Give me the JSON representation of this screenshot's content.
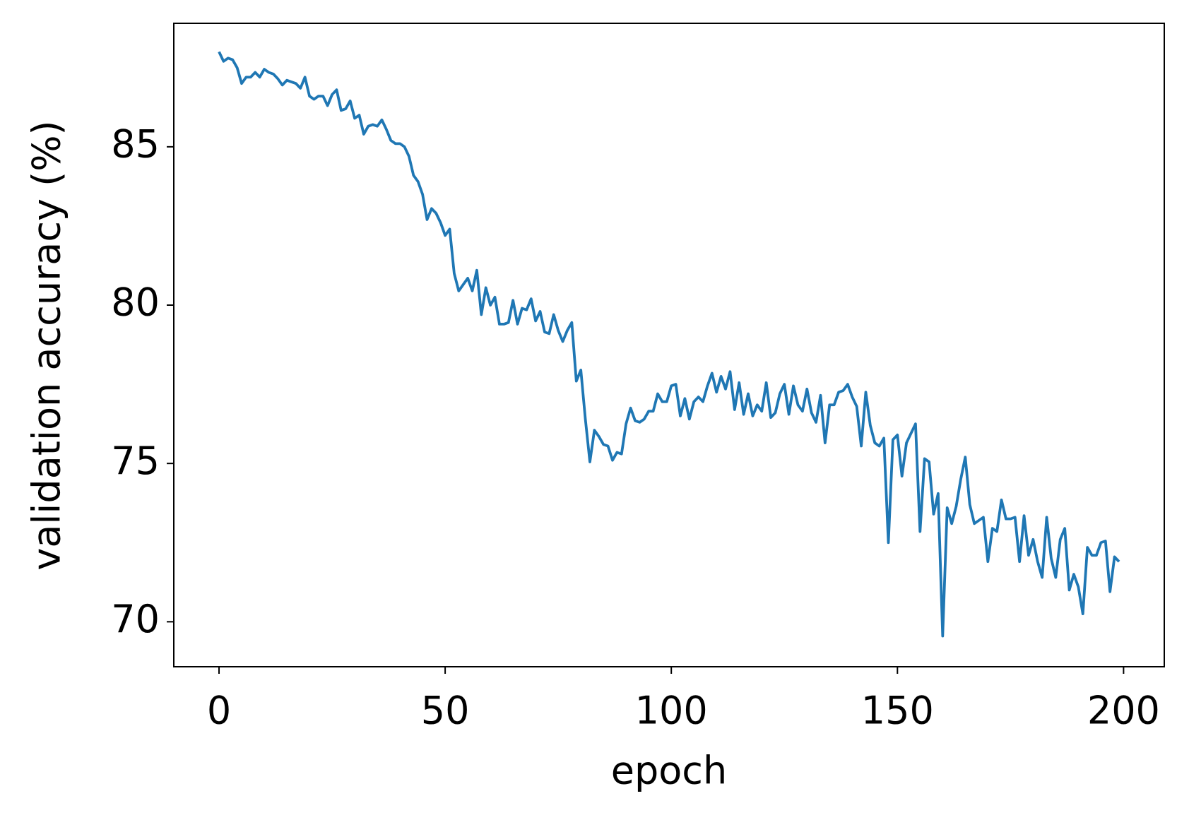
{
  "chart_data": {
    "type": "line",
    "xlabel": "epoch",
    "ylabel": "validation accuracy (%)",
    "xlim": [
      -10,
      209
    ],
    "ylim": [
      68.58,
      88.9
    ],
    "xticks": [
      0,
      50,
      100,
      150,
      200
    ],
    "yticks": [
      70,
      75,
      80,
      85
    ],
    "grid": false,
    "x": [
      0,
      1,
      2,
      3,
      4,
      5,
      6,
      7,
      8,
      9,
      10,
      11,
      12,
      13,
      14,
      15,
      16,
      17,
      18,
      19,
      20,
      21,
      22,
      23,
      24,
      25,
      26,
      27,
      28,
      29,
      30,
      31,
      32,
      33,
      34,
      35,
      36,
      37,
      38,
      39,
      40,
      41,
      42,
      43,
      44,
      45,
      46,
      47,
      48,
      49,
      50,
      51,
      52,
      53,
      54,
      55,
      56,
      57,
      58,
      59,
      60,
      61,
      62,
      63,
      64,
      65,
      66,
      67,
      68,
      69,
      70,
      71,
      72,
      73,
      74,
      75,
      76,
      77,
      78,
      79,
      80,
      81,
      82,
      83,
      84,
      85,
      86,
      87,
      88,
      89,
      90,
      91,
      92,
      93,
      94,
      95,
      96,
      97,
      98,
      99,
      100,
      101,
      102,
      103,
      104,
      105,
      106,
      107,
      108,
      109,
      110,
      111,
      112,
      113,
      114,
      115,
      116,
      117,
      118,
      119,
      120,
      121,
      122,
      123,
      124,
      125,
      126,
      127,
      128,
      129,
      130,
      131,
      132,
      133,
      134,
      135,
      136,
      137,
      138,
      139,
      140,
      141,
      142,
      143,
      144,
      145,
      146,
      147,
      148,
      149,
      150,
      151,
      152,
      153,
      154,
      155,
      156,
      157,
      158,
      159,
      160,
      161,
      162,
      163,
      164,
      165,
      166,
      167,
      168,
      169,
      170,
      171,
      172,
      173,
      174,
      175,
      176,
      177,
      178,
      179,
      180,
      181,
      182,
      183,
      184,
      185,
      186,
      187,
      188,
      189,
      190,
      191,
      192,
      193,
      194,
      195,
      196,
      197,
      198,
      199
    ],
    "series": [
      {
        "color": "#1f77b4",
        "values": [
          88.0,
          87.7,
          87.8,
          87.75,
          87.5,
          87.0,
          87.2,
          87.2,
          87.35,
          87.2,
          87.45,
          87.35,
          87.3,
          87.15,
          86.95,
          87.1,
          87.05,
          87.0,
          86.85,
          87.2,
          86.6,
          86.5,
          86.6,
          86.6,
          86.3,
          86.65,
          86.8,
          86.15,
          86.2,
          86.45,
          85.9,
          86.0,
          85.4,
          85.65,
          85.7,
          85.65,
          85.85,
          85.55,
          85.2,
          85.1,
          85.1,
          85.0,
          84.7,
          84.1,
          83.9,
          83.5,
          82.7,
          83.05,
          82.9,
          82.6,
          82.2,
          82.4,
          81.0,
          80.45,
          80.65,
          80.85,
          80.45,
          81.1,
          79.7,
          80.55,
          80.0,
          80.25,
          79.4,
          79.4,
          79.45,
          80.15,
          79.4,
          79.9,
          79.85,
          80.2,
          79.5,
          79.8,
          79.15,
          79.1,
          79.7,
          79.2,
          78.85,
          79.2,
          79.45,
          77.6,
          77.95,
          76.4,
          75.05,
          76.05,
          75.85,
          75.6,
          75.55,
          75.1,
          75.35,
          75.3,
          76.25,
          76.75,
          76.35,
          76.3,
          76.4,
          76.65,
          76.65,
          77.2,
          76.95,
          76.95,
          77.45,
          77.5,
          76.5,
          77.05,
          76.4,
          76.95,
          77.1,
          76.95,
          77.45,
          77.85,
          77.25,
          77.75,
          77.35,
          77.9,
          76.7,
          77.55,
          76.55,
          77.2,
          76.5,
          76.85,
          76.65,
          77.55,
          76.45,
          76.6,
          77.2,
          77.5,
          76.55,
          77.45,
          76.85,
          76.65,
          77.35,
          76.6,
          76.3,
          77.15,
          75.65,
          76.85,
          76.85,
          77.25,
          77.3,
          77.5,
          77.1,
          76.8,
          75.55,
          77.25,
          76.2,
          75.65,
          75.55,
          75.8,
          72.5,
          75.75,
          75.9,
          74.6,
          75.65,
          75.95,
          76.25,
          72.85,
          75.15,
          75.05,
          73.4,
          74.05,
          69.55,
          73.6,
          73.1,
          73.65,
          74.5,
          75.2,
          73.7,
          73.1,
          73.2,
          73.3,
          71.9,
          72.95,
          72.85,
          73.85,
          73.25,
          73.25,
          73.3,
          71.9,
          73.35,
          72.1,
          72.6,
          71.9,
          71.4,
          73.3,
          72.0,
          71.4,
          72.6,
          72.95,
          71.0,
          71.5,
          71.1,
          70.25,
          72.35,
          72.1,
          72.1,
          72.5,
          72.55,
          70.95,
          72.05,
          71.9
        ]
      }
    ]
  }
}
